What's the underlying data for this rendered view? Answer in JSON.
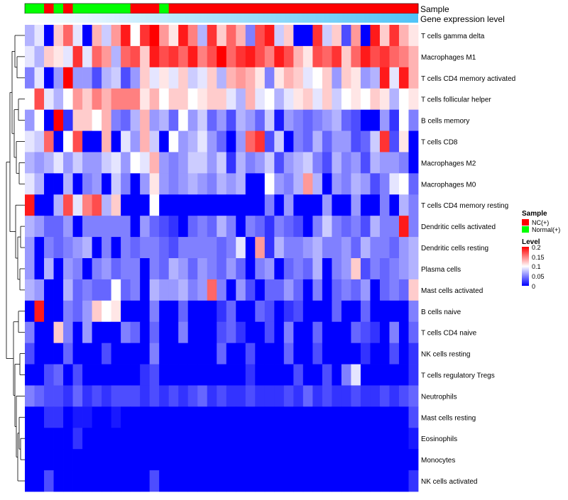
{
  "chart_data": {
    "type": "heatmap",
    "title": "",
    "annotation_labels": [
      "Sample",
      "Gene expression level"
    ],
    "rows": [
      "T cells gamma delta",
      "Macrophages M1",
      "T cells CD4 memory activated",
      "T cells follicular helper",
      "B cells memory",
      "T cells CD8",
      "Macrophages M2",
      "Macrophages M0",
      "T cells CD4 memory resting",
      "Dendritic cells activated",
      "Dendritic cells resting",
      "Plasma cells",
      "Mast cells activated",
      "B cells naive",
      "T cells CD4 naive",
      "NK cells resting",
      "T cells regulatory  Tregs",
      "Neutrophils",
      "Mast cells resting",
      "Eosinophils",
      "Monocytes",
      "NK cells activated"
    ],
    "n_columns": 41,
    "sample_groups": [
      "Normal(+)",
      "Normal(+)",
      "NC(+)",
      "Normal(+)",
      "NC(+)",
      "Normal(+)",
      "Normal(+)",
      "Normal(+)",
      "Normal(+)",
      "Normal(+)",
      "Normal(+)",
      "NC(+)",
      "NC(+)",
      "NC(+)",
      "Normal(+)",
      "NC(+)",
      "NC(+)",
      "NC(+)",
      "NC(+)",
      "NC(+)",
      "NC(+)",
      "NC(+)",
      "NC(+)",
      "NC(+)",
      "NC(+)",
      "NC(+)",
      "NC(+)",
      "NC(+)",
      "NC(+)",
      "NC(+)",
      "NC(+)",
      "NC(+)",
      "NC(+)",
      "NC(+)",
      "NC(+)",
      "NC(+)",
      "NC(+)",
      "NC(+)",
      "NC(+)",
      "NC(+)",
      "NC(+)"
    ],
    "values": [
      [
        0.07,
        0.09,
        0.0,
        0.12,
        0.16,
        0.09,
        0.0,
        0.13,
        0.08,
        0.14,
        0.19,
        0.1,
        0.18,
        0.2,
        0.14,
        0.11,
        0.19,
        0.15,
        0.07,
        0.18,
        0.12,
        0.16,
        0.13,
        0.05,
        0.17,
        0.19,
        0.08,
        0.12,
        0.0,
        0.0,
        0.18,
        0.08,
        0.12,
        0.03,
        0.14,
        0.0,
        0.19,
        0.12,
        0.18,
        0.13,
        0.11
      ],
      [
        0.09,
        0.07,
        0.12,
        0.11,
        0.09,
        0.18,
        0.09,
        0.16,
        0.14,
        0.07,
        0.16,
        0.17,
        0.12,
        0.19,
        0.17,
        0.18,
        0.16,
        0.19,
        0.15,
        0.17,
        0.2,
        0.16,
        0.18,
        0.19,
        0.17,
        0.15,
        0.19,
        0.17,
        0.13,
        0.11,
        0.17,
        0.16,
        0.18,
        0.12,
        0.16,
        0.19,
        0.17,
        0.18,
        0.16,
        0.15,
        0.13
      ],
      [
        0.05,
        0.09,
        0.0,
        0.06,
        0.2,
        0.06,
        0.06,
        0.03,
        0.07,
        0.08,
        0.03,
        0.06,
        0.12,
        0.09,
        0.11,
        0.09,
        0.12,
        0.08,
        0.09,
        0.12,
        0.07,
        0.13,
        0.14,
        0.13,
        0.11,
        0.05,
        0.11,
        0.13,
        0.12,
        0.09,
        0.1,
        0.12,
        0.06,
        0.12,
        0.11,
        0.06,
        0.07,
        0.19,
        0.09,
        0.19,
        0.13
      ],
      [
        0.1,
        0.17,
        0.09,
        0.07,
        0.1,
        0.14,
        0.12,
        0.15,
        0.13,
        0.15,
        0.15,
        0.15,
        0.11,
        0.13,
        0.1,
        0.12,
        0.12,
        0.1,
        0.11,
        0.12,
        0.12,
        0.09,
        0.07,
        0.13,
        0.09,
        0.1,
        0.07,
        0.09,
        0.11,
        0.12,
        0.09,
        0.12,
        0.08,
        0.1,
        0.11,
        0.1,
        0.12,
        0.11,
        0.07,
        0.1,
        0.11
      ],
      [
        0.06,
        0.1,
        0.0,
        0.2,
        0.02,
        0.12,
        0.12,
        0.1,
        0.13,
        0.05,
        0.04,
        0.07,
        0.13,
        0.06,
        0.07,
        0.04,
        0.1,
        0.06,
        0.08,
        0.04,
        0.06,
        0.03,
        0.07,
        0.06,
        0.04,
        0.08,
        0.01,
        0.06,
        0.05,
        0.04,
        0.05,
        0.06,
        0.07,
        0.04,
        0.03,
        0.0,
        0.0,
        0.06,
        0.02,
        0.1,
        0.05
      ],
      [
        0.09,
        0.08,
        0.16,
        0.0,
        0.1,
        0.17,
        0.0,
        0.0,
        0.13,
        0.0,
        0.09,
        0.06,
        0.13,
        0.08,
        0.0,
        0.1,
        0.06,
        0.07,
        0.09,
        0.06,
        0.04,
        0.0,
        0.06,
        0.16,
        0.18,
        0.03,
        0.08,
        0.0,
        0.05,
        0.04,
        0.07,
        0.04,
        0.06,
        0.06,
        0.03,
        0.04,
        0.08,
        0.18,
        0.03,
        0.11,
        0.0
      ],
      [
        0.07,
        0.06,
        0.07,
        0.09,
        0.06,
        0.08,
        0.06,
        0.06,
        0.08,
        0.09,
        0.06,
        0.1,
        0.09,
        0.13,
        0.06,
        0.05,
        0.06,
        0.08,
        0.08,
        0.06,
        0.08,
        0.02,
        0.07,
        0.05,
        0.06,
        0.08,
        0.03,
        0.06,
        0.07,
        0.08,
        0.05,
        0.03,
        0.07,
        0.05,
        0.06,
        0.03,
        0.07,
        0.06,
        0.06,
        0.05,
        0.0
      ],
      [
        0.09,
        0.07,
        0.0,
        0.0,
        0.07,
        0.0,
        0.05,
        0.06,
        0.0,
        0.08,
        0.05,
        0.0,
        0.06,
        0.11,
        0.06,
        0.05,
        0.06,
        0.07,
        0.06,
        0.05,
        0.07,
        0.06,
        0.07,
        0.0,
        0.0,
        0.1,
        0.06,
        0.05,
        0.07,
        0.14,
        0.07,
        0.0,
        0.06,
        0.05,
        0.07,
        0.06,
        0.03,
        0.05,
        0.09,
        0.1,
        0.04
      ],
      [
        0.19,
        0.0,
        0.0,
        0.07,
        0.17,
        0.09,
        0.15,
        0.17,
        0.07,
        0.12,
        0.0,
        0.0,
        0.0,
        0.1,
        0.0,
        0.0,
        0.0,
        0.0,
        0.0,
        0.0,
        0.0,
        0.0,
        0.0,
        0.0,
        0.0,
        0.05,
        0.0,
        0.06,
        0.0,
        0.0,
        0.0,
        0.06,
        0.0,
        0.0,
        0.06,
        0.0,
        0.0,
        0.05,
        0.0,
        0.07,
        0.05
      ],
      [
        0.07,
        0.06,
        0.04,
        0.04,
        0.06,
        0.0,
        0.05,
        0.05,
        0.05,
        0.05,
        0.05,
        0.0,
        0.06,
        0.04,
        0.03,
        0.02,
        0.0,
        0.04,
        0.05,
        0.04,
        0.07,
        0.05,
        0.0,
        0.05,
        0.04,
        0.02,
        0.05,
        0.04,
        0.03,
        0.0,
        0.05,
        0.08,
        0.05,
        0.04,
        0.05,
        0.03,
        0.07,
        0.05,
        0.05,
        0.19,
        0.05
      ],
      [
        0.06,
        0.0,
        0.05,
        0.04,
        0.05,
        0.06,
        0.07,
        0.0,
        0.05,
        0.0,
        0.05,
        0.04,
        0.05,
        0.05,
        0.04,
        0.03,
        0.05,
        0.05,
        0.05,
        0.05,
        0.04,
        0.05,
        0.09,
        0.0,
        0.14,
        0.02,
        0.07,
        0.05,
        0.05,
        0.06,
        0.07,
        0.05,
        0.05,
        0.06,
        0.04,
        0.07,
        0.05,
        0.05,
        0.04,
        0.06,
        0.07
      ],
      [
        0.06,
        0.0,
        0.07,
        0.0,
        0.06,
        0.05,
        0.0,
        0.05,
        0.06,
        0.04,
        0.05,
        0.05,
        0.0,
        0.05,
        0.04,
        0.07,
        0.06,
        0.04,
        0.06,
        0.05,
        0.04,
        0.06,
        0.04,
        0.0,
        0.05,
        0.06,
        0.0,
        0.04,
        0.05,
        0.04,
        0.07,
        0.0,
        0.05,
        0.06,
        0.12,
        0.03,
        0.05,
        0.04,
        0.05,
        0.06,
        0.07
      ],
      [
        0.07,
        0.06,
        0.0,
        0.0,
        0.07,
        0.04,
        0.05,
        0.04,
        0.04,
        0.1,
        0.04,
        0.05,
        0.0,
        0.07,
        0.06,
        0.06,
        0.07,
        0.05,
        0.06,
        0.16,
        0.05,
        0.0,
        0.06,
        0.03,
        0.0,
        0.04,
        0.04,
        0.06,
        0.04,
        0.0,
        0.05,
        0.0,
        0.04,
        0.05,
        0.04,
        0.06,
        0.0,
        0.04,
        0.05,
        0.04,
        0.12
      ],
      [
        0.0,
        0.19,
        0.0,
        0.0,
        0.05,
        0.04,
        0.06,
        0.12,
        0.1,
        0.11,
        0.0,
        0.0,
        0.0,
        0.05,
        0.0,
        0.0,
        0.04,
        0.0,
        0.0,
        0.0,
        0.02,
        0.04,
        0.0,
        0.0,
        0.04,
        0.03,
        0.0,
        0.02,
        0.03,
        0.0,
        0.0,
        0.0,
        0.04,
        0.0,
        0.0,
        0.04,
        0.0,
        0.0,
        0.0,
        0.0,
        0.05
      ],
      [
        0.05,
        0.0,
        0.0,
        0.12,
        0.05,
        0.0,
        0.06,
        0.0,
        0.0,
        0.0,
        0.05,
        0.04,
        0.0,
        0.04,
        0.0,
        0.0,
        0.05,
        0.0,
        0.0,
        0.0,
        0.03,
        0.04,
        0.02,
        0.0,
        0.0,
        0.03,
        0.0,
        0.05,
        0.0,
        0.0,
        0.04,
        0.0,
        0.0,
        0.0,
        0.04,
        0.03,
        0.02,
        0.0,
        0.05,
        0.0,
        0.04
      ],
      [
        0.03,
        0.0,
        0.0,
        0.0,
        0.04,
        0.0,
        0.0,
        0.0,
        0.03,
        0.0,
        0.0,
        0.0,
        0.0,
        0.05,
        0.0,
        0.0,
        0.0,
        0.0,
        0.0,
        0.0,
        0.04,
        0.0,
        0.0,
        0.03,
        0.0,
        0.0,
        0.0,
        0.04,
        0.0,
        0.0,
        0.03,
        0.0,
        0.0,
        0.0,
        0.0,
        0.02,
        0.0,
        0.0,
        0.03,
        0.0,
        0.02
      ],
      [
        0.0,
        0.0,
        0.03,
        0.04,
        0.0,
        0.03,
        0.0,
        0.0,
        0.0,
        0.0,
        0.0,
        0.0,
        0.02,
        0.03,
        0.0,
        0.0,
        0.0,
        0.0,
        0.0,
        0.0,
        0.0,
        0.0,
        0.0,
        0.02,
        0.0,
        0.0,
        0.0,
        0.0,
        0.03,
        0.0,
        0.0,
        0.03,
        0.0,
        0.05,
        0.09,
        0.0,
        0.0,
        0.0,
        0.0,
        0.0,
        0.02
      ],
      [
        0.05,
        0.04,
        0.03,
        0.03,
        0.02,
        0.04,
        0.02,
        0.03,
        0.02,
        0.03,
        0.03,
        0.03,
        0.02,
        0.03,
        0.02,
        0.03,
        0.02,
        0.03,
        0.04,
        0.02,
        0.03,
        0.02,
        0.02,
        0.03,
        0.02,
        0.02,
        0.02,
        0.03,
        0.02,
        0.04,
        0.02,
        0.03,
        0.02,
        0.02,
        0.03,
        0.02,
        0.02,
        0.03,
        0.02,
        0.03,
        0.04
      ],
      [
        0.0,
        0.0,
        0.02,
        0.02,
        0.0,
        0.01,
        0.01,
        0.0,
        0.0,
        0.01,
        0.0,
        0.0,
        0.0,
        0.0,
        0.0,
        0.0,
        0.0,
        0.0,
        0.0,
        0.0,
        0.0,
        0.0,
        0.0,
        0.0,
        0.0,
        0.0,
        0.0,
        0.0,
        0.0,
        0.0,
        0.0,
        0.0,
        0.0,
        0.0,
        0.0,
        0.0,
        0.0,
        0.0,
        0.0,
        0.0,
        0.03
      ],
      [
        0.0,
        0.0,
        0.0,
        0.0,
        0.0,
        0.02,
        0.0,
        0.0,
        0.0,
        0.0,
        0.0,
        0.0,
        0.0,
        0.0,
        0.0,
        0.0,
        0.0,
        0.0,
        0.0,
        0.0,
        0.0,
        0.0,
        0.0,
        0.0,
        0.0,
        0.0,
        0.0,
        0.0,
        0.0,
        0.0,
        0.0,
        0.0,
        0.0,
        0.0,
        0.0,
        0.0,
        0.0,
        0.0,
        0.0,
        0.0,
        0.01
      ],
      [
        0.0,
        0.0,
        0.0,
        0.0,
        0.0,
        0.0,
        0.0,
        0.0,
        0.0,
        0.0,
        0.0,
        0.0,
        0.0,
        0.0,
        0.0,
        0.0,
        0.0,
        0.0,
        0.0,
        0.0,
        0.0,
        0.0,
        0.0,
        0.0,
        0.0,
        0.0,
        0.0,
        0.0,
        0.0,
        0.0,
        0.0,
        0.0,
        0.0,
        0.0,
        0.0,
        0.0,
        0.0,
        0.0,
        0.0,
        0.0,
        0.0
      ],
      [
        0.0,
        0.0,
        0.03,
        0.0,
        0.0,
        0.0,
        0.0,
        0.0,
        0.0,
        0.0,
        0.0,
        0.0,
        0.0,
        0.03,
        0.0,
        0.0,
        0.0,
        0.0,
        0.0,
        0.0,
        0.0,
        0.0,
        0.0,
        0.0,
        0.0,
        0.0,
        0.0,
        0.0,
        0.0,
        0.0,
        0.0,
        0.0,
        0.0,
        0.0,
        0.0,
        0.0,
        0.0,
        0.0,
        0.0,
        0.0,
        0.02
      ]
    ],
    "legend": {
      "sample_title": "Sample",
      "sample_items": [
        {
          "label": "NC(+)",
          "color": "#ff0000"
        },
        {
          "label": "Normal(+)",
          "color": "#00ff00"
        }
      ],
      "level_title": "Level",
      "level_ticks": [
        "0.2",
        "0.15",
        "0.1",
        "0.05",
        "0"
      ],
      "level_range": [
        0,
        0.2
      ]
    },
    "colors": {
      "low": "#0000ff",
      "mid": "#ffffff",
      "high": "#ff0000",
      "gene_level_start": "#ffffff",
      "gene_level_end": "#4fc3f7"
    }
  }
}
